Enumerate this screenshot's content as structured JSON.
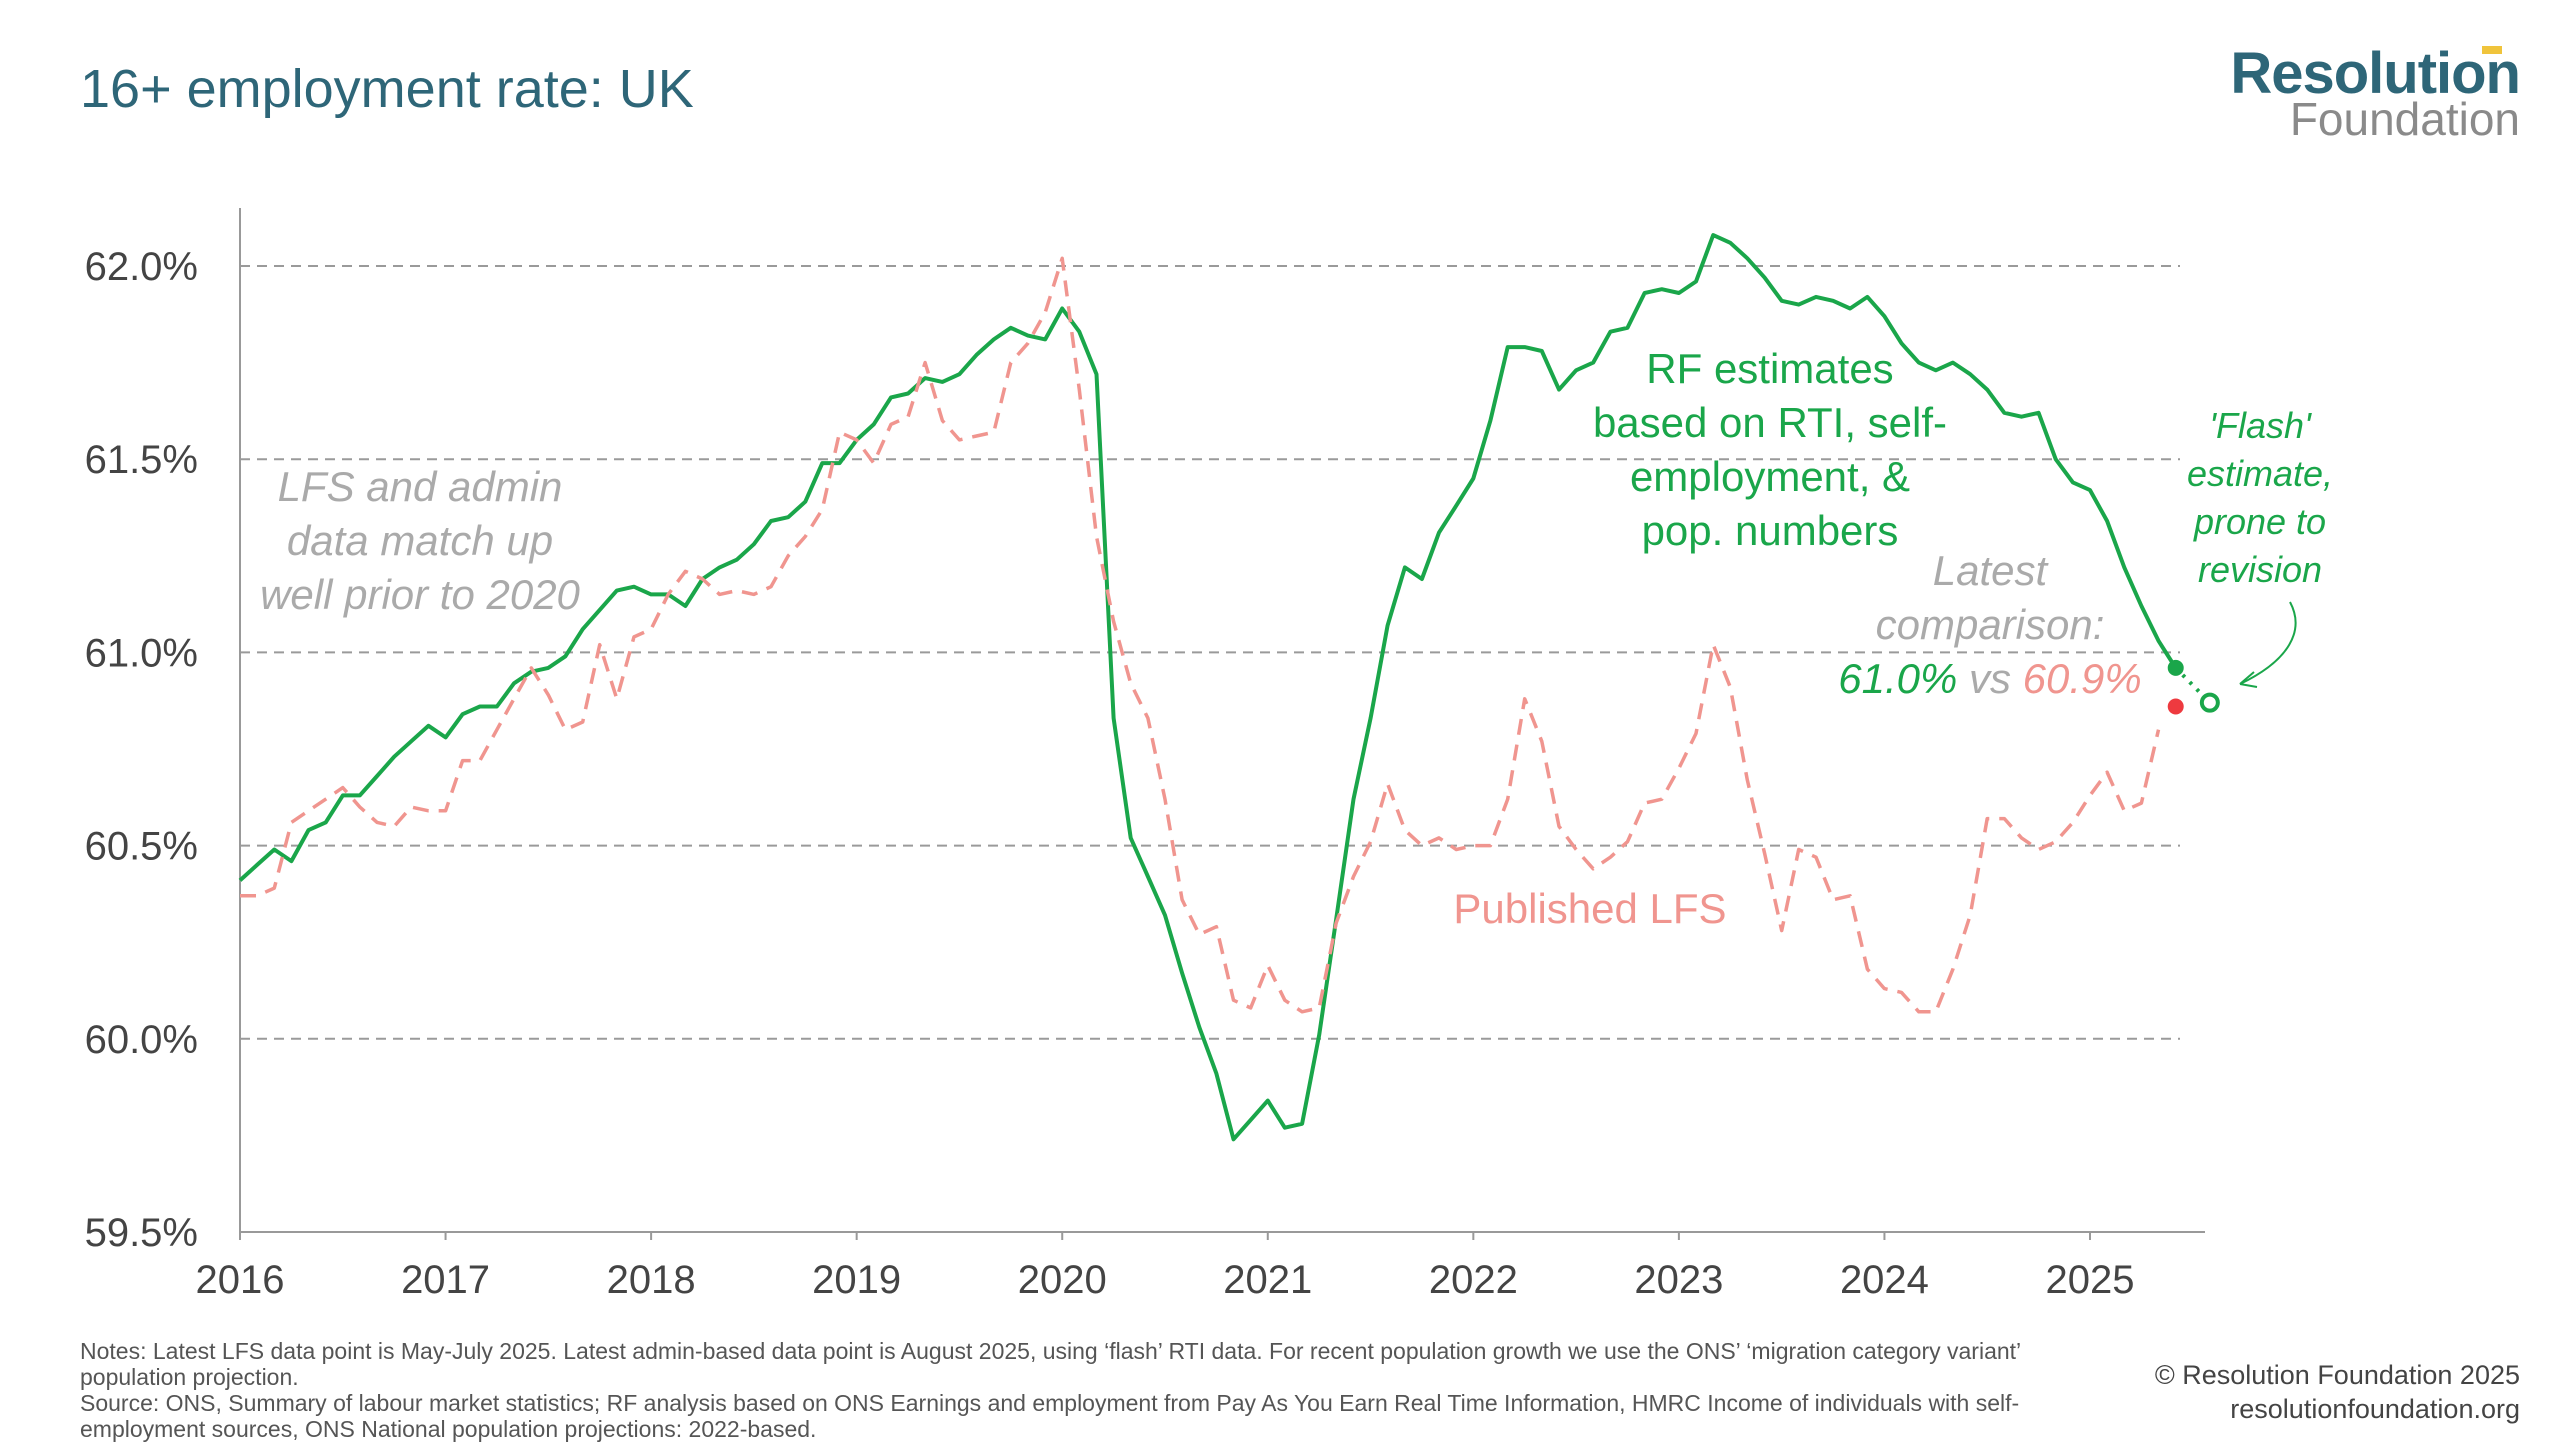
{
  "title": "16+ employment rate: UK",
  "logo": {
    "line1": "Resolution",
    "line2": "Foundation"
  },
  "colors": {
    "rf": "#1aa64a",
    "lfs": "#f0958f",
    "lfs_point": "#ee3a3f",
    "grid": "#9a9a9a",
    "annotation_grey": "#aaaaaa"
  },
  "annotations": {
    "left": [
      "LFS and admin",
      "data match up",
      "well prior to 2020"
    ],
    "rf": [
      "RF estimates",
      "based on RTI, self-",
      "employment, &",
      "pop. numbers"
    ],
    "lfs": "Published LFS",
    "latest": [
      "Latest",
      "comparison:"
    ],
    "latest_rf": "61.0%",
    "latest_vs": "vs",
    "latest_lfs": "60.9%",
    "flash": [
      "'Flash'",
      "estimate,",
      "prone to",
      "revision"
    ]
  },
  "notes": "Notes: Latest LFS data point is May-July 2025. Latest admin-based data point is August 2025, using ‘flash’ RTI data. For recent population growth we use the ONS’ ‘migration category variant’ population projection.",
  "source": "Source: ONS, Summary of labour market statistics; RF analysis based on ONS Earnings and employment from Pay As You Earn Real Time Information, HMRC Income of individuals with self-employment sources, ONS National population projections: 2022-based.",
  "copyright": "© Resolution Foundation 2025",
  "website": "resolutionfoundation.org",
  "chart_data": {
    "type": "line",
    "ylim": [
      59.5,
      62.0
    ],
    "y_ticks": [
      "59.5%",
      "60.0%",
      "60.5%",
      "61.0%",
      "61.5%",
      "62.0%"
    ],
    "y_tick_values": [
      59.5,
      60.0,
      60.5,
      61.0,
      61.5,
      62.0
    ],
    "x_ticks": [
      "2016",
      "2017",
      "2018",
      "2019",
      "2020",
      "2021",
      "2022",
      "2023",
      "2024",
      "2025"
    ],
    "x_tick_values": [
      2016,
      2017,
      2018,
      2019,
      2020,
      2021,
      2022,
      2023,
      2024,
      2025
    ],
    "xlim": [
      2016,
      2025.75
    ],
    "grid": "horizontal dashed",
    "series": [
      {
        "name": "RF estimates based on RTI, self-employment, & pop. numbers",
        "style": "solid",
        "x": [
          2016.0,
          2016.083,
          2016.167,
          2016.25,
          2016.333,
          2016.417,
          2016.5,
          2016.583,
          2016.667,
          2016.75,
          2016.833,
          2016.917,
          2017.0,
          2017.083,
          2017.167,
          2017.25,
          2017.333,
          2017.417,
          2017.5,
          2017.583,
          2017.667,
          2017.75,
          2017.833,
          2017.917,
          2018.0,
          2018.083,
          2018.167,
          2018.25,
          2018.333,
          2018.417,
          2018.5,
          2018.583,
          2018.667,
          2018.75,
          2018.833,
          2018.917,
          2019.0,
          2019.083,
          2019.167,
          2019.25,
          2019.333,
          2019.417,
          2019.5,
          2019.583,
          2019.667,
          2019.75,
          2019.833,
          2019.917,
          2020.0,
          2020.083,
          2020.167,
          2020.25,
          2020.333,
          2020.417,
          2020.5,
          2020.583,
          2020.667,
          2020.75,
          2020.833,
          2020.917,
          2021.0,
          2021.083,
          2021.167,
          2021.25,
          2021.333,
          2021.417,
          2021.5,
          2021.583,
          2021.667,
          2021.75,
          2021.833,
          2021.917,
          2022.0,
          2022.083,
          2022.167,
          2022.25,
          2022.333,
          2022.417,
          2022.5,
          2022.583,
          2022.667,
          2022.75,
          2022.833,
          2022.917,
          2023.0,
          2023.083,
          2023.167,
          2023.25,
          2023.333,
          2023.417,
          2023.5,
          2023.583,
          2023.667,
          2023.75,
          2023.833,
          2023.917,
          2024.0,
          2024.083,
          2024.167,
          2024.25,
          2024.333,
          2024.417,
          2024.5,
          2024.583,
          2024.667,
          2024.75,
          2024.833,
          2024.917,
          2025.0,
          2025.083,
          2025.167,
          2025.25,
          2025.333,
          2025.417
        ],
        "values": [
          60.41,
          60.45,
          60.49,
          60.46,
          60.54,
          60.56,
          60.63,
          60.63,
          60.68,
          60.73,
          60.77,
          60.81,
          60.78,
          60.84,
          60.86,
          60.86,
          60.92,
          60.95,
          60.96,
          60.99,
          61.06,
          61.11,
          61.16,
          61.17,
          61.15,
          61.15,
          61.12,
          61.19,
          61.22,
          61.24,
          61.28,
          61.34,
          61.35,
          61.39,
          61.49,
          61.49,
          61.55,
          61.59,
          61.66,
          61.67,
          61.71,
          61.7,
          61.72,
          61.77,
          61.81,
          61.84,
          61.82,
          61.81,
          61.89,
          61.83,
          61.72,
          60.83,
          60.52,
          60.42,
          60.32,
          60.17,
          60.03,
          59.91,
          59.74,
          59.79,
          59.84,
          59.77,
          59.78,
          60.01,
          60.31,
          60.62,
          60.83,
          61.07,
          61.22,
          61.19,
          61.31,
          61.38,
          61.45,
          61.6,
          61.79,
          61.79,
          61.78,
          61.68,
          61.73,
          61.75,
          61.83,
          61.84,
          61.93,
          61.94,
          61.93,
          61.96,
          62.08,
          62.06,
          62.02,
          61.97,
          61.91,
          61.9,
          61.92,
          61.91,
          61.89,
          61.92,
          61.87,
          61.8,
          61.75,
          61.73,
          61.75,
          61.72,
          61.68,
          61.62,
          61.61,
          61.62,
          61.5,
          61.44,
          61.42,
          61.34,
          61.22,
          61.12,
          61.03,
          60.96
        ]
      },
      {
        "name": "Published LFS",
        "style": "dashed",
        "x": [
          2016.0,
          2016.083,
          2016.167,
          2016.25,
          2016.333,
          2016.417,
          2016.5,
          2016.583,
          2016.667,
          2016.75,
          2016.833,
          2016.917,
          2017.0,
          2017.083,
          2017.167,
          2017.25,
          2017.333,
          2017.417,
          2017.5,
          2017.583,
          2017.667,
          2017.75,
          2017.833,
          2017.917,
          2018.0,
          2018.083,
          2018.167,
          2018.25,
          2018.333,
          2018.417,
          2018.5,
          2018.583,
          2018.667,
          2018.75,
          2018.833,
          2018.917,
          2019.0,
          2019.083,
          2019.167,
          2019.25,
          2019.333,
          2019.417,
          2019.5,
          2019.583,
          2019.667,
          2019.75,
          2019.833,
          2019.917,
          2020.0,
          2020.083,
          2020.167,
          2020.25,
          2020.333,
          2020.417,
          2020.5,
          2020.583,
          2020.667,
          2020.75,
          2020.833,
          2020.917,
          2021.0,
          2021.083,
          2021.167,
          2021.25,
          2021.333,
          2021.417,
          2021.5,
          2021.583,
          2021.667,
          2021.75,
          2021.833,
          2021.917,
          2022.0,
          2022.083,
          2022.167,
          2022.25,
          2022.333,
          2022.417,
          2022.5,
          2022.583,
          2022.667,
          2022.75,
          2022.833,
          2022.917,
          2023.0,
          2023.083,
          2023.167,
          2023.25,
          2023.333,
          2023.417,
          2023.5,
          2023.583,
          2023.667,
          2023.75,
          2023.833,
          2023.917,
          2024.0,
          2024.083,
          2024.167,
          2024.25,
          2024.333,
          2024.417,
          2024.5,
          2024.583,
          2024.667,
          2024.75,
          2024.833,
          2024.917,
          2025.0,
          2025.083,
          2025.167,
          2025.25,
          2025.333
        ],
        "values": [
          60.37,
          60.37,
          60.39,
          60.56,
          60.59,
          60.62,
          60.65,
          60.6,
          60.56,
          60.55,
          60.6,
          60.59,
          60.59,
          60.72,
          60.72,
          60.8,
          60.88,
          60.96,
          60.89,
          60.8,
          60.82,
          61.02,
          60.88,
          61.04,
          61.06,
          61.15,
          61.21,
          61.19,
          61.15,
          61.16,
          61.15,
          61.17,
          61.25,
          61.3,
          61.37,
          61.57,
          61.55,
          61.49,
          61.59,
          61.61,
          61.75,
          61.6,
          61.55,
          61.56,
          61.57,
          61.75,
          61.8,
          61.88,
          62.02,
          61.68,
          61.3,
          61.08,
          60.92,
          60.83,
          60.62,
          60.36,
          60.27,
          60.29,
          60.1,
          60.08,
          60.19,
          60.1,
          60.07,
          60.08,
          60.3,
          60.42,
          60.51,
          60.66,
          60.54,
          60.5,
          60.52,
          60.49,
          60.5,
          60.5,
          60.62,
          60.88,
          60.77,
          60.55,
          60.49,
          60.44,
          60.47,
          60.51,
          60.61,
          60.62,
          60.7,
          60.79,
          61.02,
          60.91,
          60.67,
          60.48,
          60.28,
          60.49,
          60.47,
          60.36,
          60.37,
          60.18,
          60.13,
          60.12,
          60.07,
          60.07,
          60.18,
          60.32,
          60.57,
          60.57,
          60.52,
          60.49,
          60.51,
          60.56,
          60.63,
          60.69,
          60.59,
          60.61,
          60.8
        ]
      }
    ],
    "highlight_points": [
      {
        "series": "RF estimates",
        "x": 2025.417,
        "y": 60.96,
        "style": "filled"
      },
      {
        "series": "RF flash estimate",
        "x": 2025.583,
        "y": 60.87,
        "style": "hollow"
      },
      {
        "series": "Published LFS",
        "x": 2025.417,
        "y": 60.86,
        "style": "filled"
      }
    ]
  }
}
